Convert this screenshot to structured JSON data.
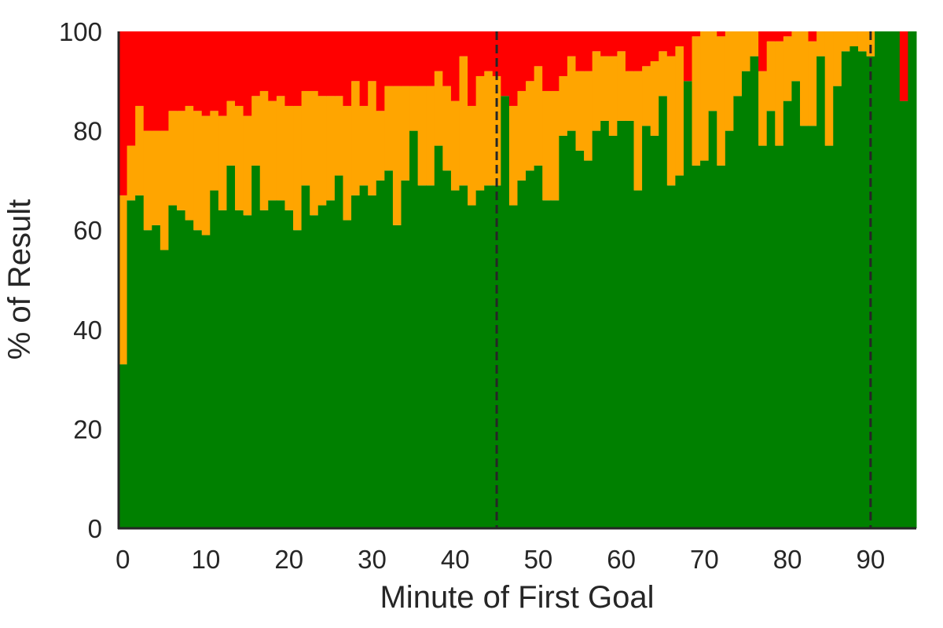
{
  "chart_data": {
    "type": "bar",
    "stacked": true,
    "xlabel": "Minute of First Goal",
    "ylabel": "% of Result",
    "xlim": [
      -0.5,
      95.5
    ],
    "ylim": [
      0,
      100
    ],
    "xticks": [
      0,
      10,
      20,
      30,
      40,
      50,
      60,
      70,
      80,
      90
    ],
    "yticks": [
      0,
      20,
      40,
      60,
      80,
      100
    ],
    "grid": false,
    "vlines": [
      45,
      90
    ],
    "x": [
      0,
      1,
      2,
      3,
      4,
      5,
      6,
      7,
      8,
      9,
      10,
      11,
      12,
      13,
      14,
      15,
      16,
      17,
      18,
      19,
      20,
      21,
      22,
      23,
      24,
      25,
      26,
      27,
      28,
      29,
      30,
      31,
      32,
      33,
      34,
      35,
      36,
      37,
      38,
      39,
      40,
      41,
      42,
      43,
      44,
      45,
      46,
      47,
      48,
      49,
      50,
      51,
      52,
      53,
      54,
      55,
      56,
      57,
      58,
      59,
      60,
      61,
      62,
      63,
      64,
      65,
      66,
      67,
      68,
      69,
      70,
      71,
      72,
      73,
      74,
      75,
      76,
      77,
      78,
      79,
      80,
      81,
      82,
      83,
      84,
      85,
      86,
      87,
      88,
      89,
      90,
      91,
      92,
      93,
      94,
      95
    ],
    "series": [
      {
        "color": "#008000",
        "values": [
          33,
          66,
          67,
          60,
          61,
          56,
          65,
          64,
          62,
          60,
          59,
          68,
          64,
          73,
          64,
          63,
          73,
          64,
          66,
          66,
          64,
          60,
          69,
          63,
          65,
          66,
          71,
          62,
          67,
          69,
          67,
          70,
          72,
          61,
          70,
          80,
          69,
          69,
          77,
          72,
          68,
          69,
          65,
          68,
          69,
          69,
          87,
          65,
          70,
          72,
          73,
          66,
          66,
          79,
          80,
          76,
          74,
          80,
          82,
          79,
          82,
          82,
          68,
          81,
          79,
          87,
          69,
          71,
          90,
          73,
          74,
          84,
          73,
          80,
          87,
          92,
          95,
          77,
          84,
          77,
          86,
          90,
          81,
          81,
          95,
          77,
          89,
          96,
          97,
          96,
          95,
          100,
          100,
          100,
          86,
          100
        ]
      },
      {
        "color": "#FFA500",
        "values": [
          34,
          11,
          18,
          20,
          19,
          24,
          19,
          20,
          23,
          24,
          24,
          16,
          19,
          13,
          21,
          20,
          14,
          24,
          20,
          21,
          21,
          25,
          19,
          25,
          22,
          21,
          16,
          23,
          23,
          16,
          23,
          14,
          17,
          28,
          19,
          9,
          20,
          20,
          15,
          17,
          18,
          26,
          20,
          23,
          23,
          22,
          0,
          20,
          18,
          18,
          20,
          22,
          22,
          12,
          15,
          16,
          18,
          16,
          13,
          16,
          14,
          10,
          24,
          12,
          15,
          9,
          26,
          26,
          0,
          26,
          26,
          16,
          26,
          20,
          13,
          8,
          5,
          15,
          14,
          21,
          13,
          10,
          19,
          17,
          5,
          23,
          11,
          4,
          3,
          4,
          5,
          0,
          0,
          0,
          0,
          0
        ]
      },
      {
        "color": "#FF0000",
        "values": [
          33,
          23,
          15,
          20,
          20,
          20,
          16,
          16,
          15,
          16,
          17,
          16,
          17,
          14,
          15,
          17,
          13,
          12,
          14,
          13,
          15,
          15,
          12,
          12,
          13,
          13,
          13,
          15,
          10,
          15,
          10,
          16,
          11,
          11,
          11,
          11,
          11,
          11,
          8,
          11,
          14,
          5,
          15,
          9,
          8,
          9,
          13,
          15,
          12,
          10,
          7,
          12,
          12,
          9,
          5,
          8,
          8,
          4,
          5,
          5,
          4,
          8,
          8,
          7,
          6,
          4,
          5,
          3,
          10,
          1,
          0,
          0,
          1,
          0,
          0,
          0,
          0,
          8,
          2,
          2,
          1,
          0,
          0,
          2,
          0,
          0,
          0,
          0,
          0,
          0,
          0,
          0,
          0,
          0,
          14,
          0
        ]
      }
    ]
  }
}
